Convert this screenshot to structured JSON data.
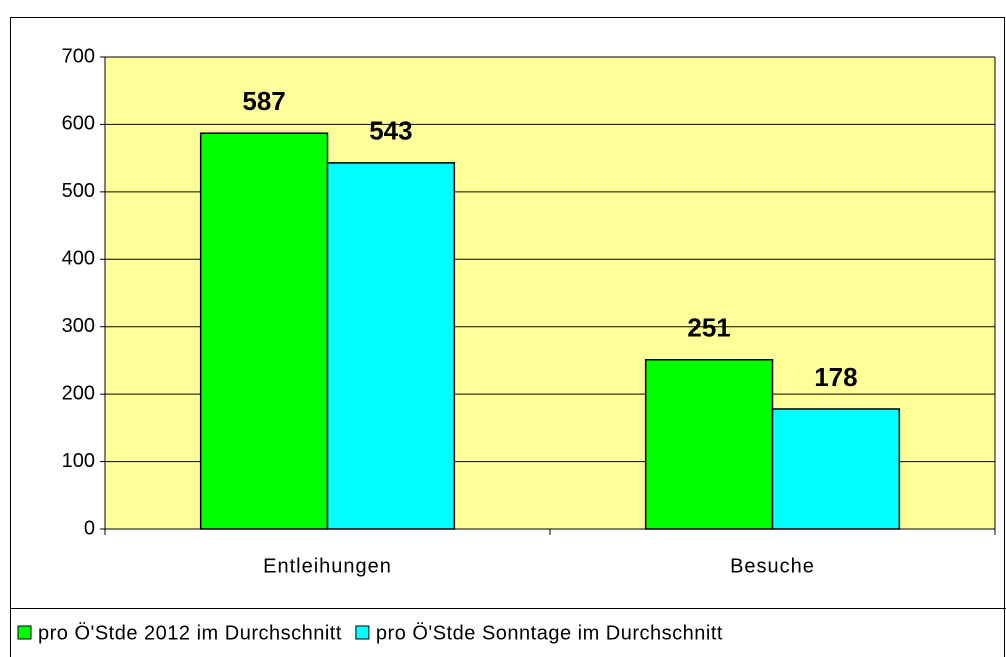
{
  "chart_data": {
    "type": "bar",
    "categories": [
      "Entleihungen",
      "Besuche"
    ],
    "series": [
      {
        "name": "pro Ö'Stde 2012 im Durchschnitt",
        "color": "#00ff00",
        "values": [
          587,
          251
        ]
      },
      {
        "name": "pro Ö'Stde Sonntage im Durchschnitt",
        "color": "#00ffff",
        "values": [
          543,
          178
        ]
      }
    ],
    "ylim": [
      0,
      700
    ],
    "yticks": [
      0,
      100,
      200,
      300,
      400,
      500,
      600,
      700
    ],
    "grid": true,
    "plot_background": "#ffff99",
    "legend": "bottom"
  }
}
